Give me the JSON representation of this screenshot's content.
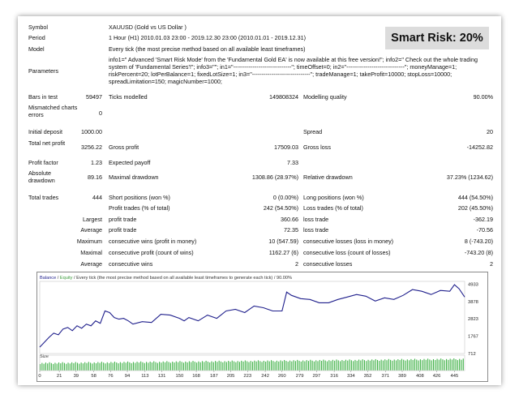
{
  "badge": "Smart Risk: 20%",
  "rows": {
    "symbol": {
      "label": "Symbol",
      "value": "XAUUSD (Gold vs US Dollar )"
    },
    "period": {
      "label": "Period",
      "value": "1 Hour (H1) 2010.01.03 23:00 - 2019.12.30 23:00 (2010.01.01 - 2019.12.31)"
    },
    "model": {
      "label": "Model",
      "value": "Every tick (the most precise method based on all available least timeframes)"
    },
    "parameters": {
      "label": "Parameters",
      "value": "info1=\" Advanced 'Smart Risk Mode' from the 'Fundamental Gold EA' is now available at this free version!\"; info2=\" Check out the whole trading system of 'Fundamental Series'!\"; info3=\"\"; in1=\"------------------------------\"; timeOffset=0; in2=\"------------------------------\"; moneyManage=1; riskPercent=20; lotPerBalance=1; fixedLotSize=1; in3=\"------------------------------\"; tradeManage=1; takeProfit=10000; stopLoss=10000; spreadLimitation=150; magicNumber=1000;"
    }
  },
  "stats": {
    "bars_label": "Bars in test",
    "bars_value": "59497",
    "ticks_label": "Ticks modelled",
    "ticks_value": "149808324",
    "quality_label": "Modelling quality",
    "quality_value": "90.00%",
    "mismatch_label": "Mismatched charts errors",
    "mismatch_value": "0",
    "deposit_label": "Initial deposit",
    "deposit_value": "1000.00",
    "spread_label": "Spread",
    "spread_value": "20",
    "netprofit_label": "Total net profit",
    "netprofit_value": "3256.22",
    "grossprofit_label": "Gross profit",
    "grossprofit_value": "17509.03",
    "grossloss_label": "Gross loss",
    "grossloss_value": "-14252.82",
    "pf_label": "Profit factor",
    "pf_value": "1.23",
    "payoff_label": "Expected payoff",
    "payoff_value": "7.33",
    "absdd_label": "Absolute drawdown",
    "absdd_value": "89.16",
    "maxdd_label": "Maximal drawdown",
    "maxdd_value": "1308.86 (28.97%)",
    "reldd_label": "Relative drawdown",
    "reldd_value": "37.23% (1234.62)",
    "trades_label": "Total trades",
    "trades_value": "444",
    "short_label": "Short positions (won %)",
    "short_value": "0 (0.00%)",
    "long_label": "Long positions (won %)",
    "long_value": "444 (54.50%)",
    "pt_label": "Profit trades (% of total)",
    "pt_value": "242 (54.50%)",
    "lt_label": "Loss trades (% of total)",
    "lt_value": "202 (45.50%)",
    "largest_label": "Largest",
    "largest_profit_label": "profit trade",
    "largest_profit_value": "360.66",
    "largest_loss_label": "loss trade",
    "largest_loss_value": "-362.19",
    "average_label": "Average",
    "average_profit_label": "profit trade",
    "average_profit_value": "72.35",
    "average_loss_label": "loss trade",
    "average_loss_value": "-70.56",
    "maximum_label": "Maximum",
    "max_wins_label": "consecutive wins (profit in money)",
    "max_wins_value": "10 (547.59)",
    "max_losses_label": "consecutive losses (loss in money)",
    "max_losses_value": "8 (-743.20)",
    "maximal_label": "Maximal",
    "maximal_profit_label": "consecutive profit (count of wins)",
    "maximal_profit_value": "1162.27 (6)",
    "maximal_loss_label": "consecutive loss (count of losses)",
    "maximal_loss_value": "-743.20 (8)",
    "avg2_label": "Average",
    "avg_wins_label": "consecutive wins",
    "avg_wins_value": "2",
    "avg_losses_label": "consecutive losses",
    "avg_losses_value": "2"
  },
  "chart_data": {
    "type": "line",
    "legend": {
      "balance": "Balance",
      "sep": " / ",
      "equity": "Equity",
      "rest": " / Every tick (the most precise method based on all available least timeframes to generate each tick) / 90.00%"
    },
    "ylim": [
      712,
      5100
    ],
    "yticks": [
      712,
      1767,
      2823,
      3878,
      4933
    ],
    "xlim": [
      0,
      456
    ],
    "xticks": [
      0,
      21,
      39,
      58,
      76,
      94,
      113,
      131,
      150,
      168,
      187,
      205,
      223,
      242,
      260,
      279,
      297,
      316,
      334,
      352,
      371,
      389,
      408,
      426,
      445
    ],
    "colors": {
      "balance": "#1f1f8c",
      "equity": "#3a9a3a",
      "size": "#3cb043"
    },
    "series": [
      {
        "name": "Balance",
        "x": [
          0,
          10,
          15,
          20,
          25,
          30,
          35,
          40,
          45,
          50,
          55,
          60,
          65,
          70,
          75,
          80,
          85,
          90,
          95,
          100,
          110,
          120,
          130,
          140,
          150,
          155,
          160,
          170,
          180,
          190,
          200,
          210,
          220,
          230,
          240,
          250,
          260,
          265,
          270,
          280,
          290,
          300,
          310,
          320,
          330,
          340,
          350,
          360,
          370,
          380,
          390,
          400,
          410,
          420,
          430,
          440,
          445,
          450,
          456
        ],
        "y": [
          1100,
          1700,
          1950,
          1850,
          2200,
          2300,
          2100,
          2400,
          2250,
          2500,
          2400,
          2700,
          2550,
          3300,
          3200,
          2900,
          2800,
          2850,
          2700,
          2500,
          2650,
          2600,
          3100,
          3050,
          2850,
          2700,
          2900,
          2700,
          3050,
          2850,
          3300,
          3400,
          3200,
          3600,
          3500,
          3300,
          3300,
          4450,
          4250,
          4050,
          4000,
          3800,
          3800,
          4000,
          4150,
          4300,
          4200,
          3900,
          4100,
          4000,
          4250,
          4600,
          4500,
          4300,
          4550,
          4500,
          4900,
          4650,
          4150
        ]
      },
      {
        "name": "Size",
        "values_note": ""
      }
    ],
    "size_label": "Size"
  }
}
